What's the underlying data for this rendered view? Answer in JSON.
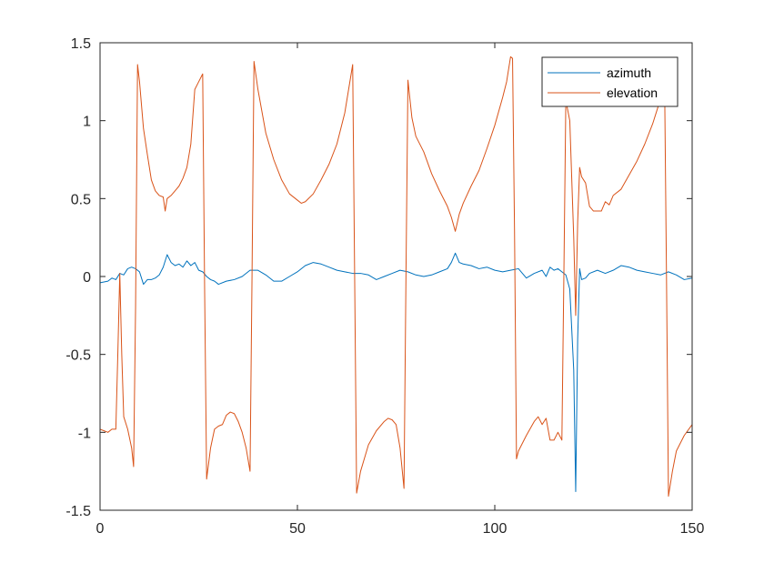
{
  "chart_data": {
    "type": "line",
    "title": "",
    "xlabel": "",
    "ylabel": "",
    "xlim": [
      0,
      150
    ],
    "ylim": [
      -1.5,
      1.5
    ],
    "xticks": [
      0,
      50,
      100,
      150
    ],
    "yticks": [
      -1.5,
      -1,
      -0.5,
      0,
      0.5,
      1,
      1.5
    ],
    "xtick_labels": [
      "0",
      "50",
      "100",
      "150"
    ],
    "ytick_labels": [
      "-1.5",
      "-1",
      "-0.5",
      "0",
      "0.5",
      "1",
      "1.5"
    ],
    "grid": false,
    "legend_position": "top-right",
    "series": [
      {
        "name": "azimuth",
        "color": "#0072BD",
        "points": [
          [
            0,
            -0.04
          ],
          [
            2,
            -0.03
          ],
          [
            3,
            -0.01
          ],
          [
            4,
            -0.02
          ],
          [
            5,
            0.02
          ],
          [
            6,
            0.01
          ],
          [
            7,
            0.05
          ],
          [
            8,
            0.06
          ],
          [
            9,
            0.05
          ],
          [
            10,
            0.03
          ],
          [
            11,
            -0.05
          ],
          [
            12,
            -0.02
          ],
          [
            13,
            -0.02
          ],
          [
            14,
            -0.01
          ],
          [
            15,
            0.01
          ],
          [
            16,
            0.06
          ],
          [
            17,
            0.14
          ],
          [
            18,
            0.09
          ],
          [
            19,
            0.07
          ],
          [
            20,
            0.08
          ],
          [
            21,
            0.06
          ],
          [
            22,
            0.1
          ],
          [
            23,
            0.07
          ],
          [
            24,
            0.09
          ],
          [
            25,
            0.04
          ],
          [
            26,
            0.03
          ],
          [
            27,
            0.0
          ],
          [
            28,
            -0.02
          ],
          [
            29,
            -0.03
          ],
          [
            30,
            -0.05
          ],
          [
            32,
            -0.03
          ],
          [
            34,
            -0.02
          ],
          [
            36,
            0.0
          ],
          [
            38,
            0.04
          ],
          [
            40,
            0.04
          ],
          [
            42,
            0.01
          ],
          [
            44,
            -0.03
          ],
          [
            46,
            -0.03
          ],
          [
            48,
            0.0
          ],
          [
            50,
            0.03
          ],
          [
            52,
            0.07
          ],
          [
            54,
            0.09
          ],
          [
            56,
            0.08
          ],
          [
            58,
            0.06
          ],
          [
            60,
            0.04
          ],
          [
            62,
            0.03
          ],
          [
            64,
            0.02
          ],
          [
            66,
            0.02
          ],
          [
            68,
            0.01
          ],
          [
            70,
            -0.02
          ],
          [
            72,
            0.0
          ],
          [
            74,
            0.02
          ],
          [
            76,
            0.04
          ],
          [
            78,
            0.03
          ],
          [
            80,
            0.01
          ],
          [
            82,
            0.0
          ],
          [
            84,
            0.01
          ],
          [
            86,
            0.03
          ],
          [
            88,
            0.05
          ],
          [
            89,
            0.09
          ],
          [
            90,
            0.15
          ],
          [
            91,
            0.09
          ],
          [
            92,
            0.08
          ],
          [
            94,
            0.07
          ],
          [
            96,
            0.05
          ],
          [
            98,
            0.06
          ],
          [
            100,
            0.04
          ],
          [
            102,
            0.03
          ],
          [
            104,
            0.04
          ],
          [
            106,
            0.05
          ],
          [
            107,
            0.02
          ],
          [
            108,
            -0.01
          ],
          [
            110,
            0.02
          ],
          [
            112,
            0.04
          ],
          [
            113,
            0.0
          ],
          [
            114,
            0.06
          ],
          [
            115,
            0.04
          ],
          [
            116,
            0.05
          ],
          [
            117,
            0.03
          ],
          [
            118,
            0.01
          ],
          [
            119,
            -0.08
          ],
          [
            120,
            -0.6
          ],
          [
            120.5,
            -1.38
          ],
          [
            121,
            -0.4
          ],
          [
            121.5,
            0.05
          ],
          [
            122,
            -0.02
          ],
          [
            123,
            -0.01
          ],
          [
            124,
            0.02
          ],
          [
            126,
            0.04
          ],
          [
            128,
            0.02
          ],
          [
            130,
            0.04
          ],
          [
            132,
            0.07
          ],
          [
            134,
            0.06
          ],
          [
            136,
            0.04
          ],
          [
            138,
            0.03
          ],
          [
            140,
            0.02
          ],
          [
            142,
            0.01
          ],
          [
            144,
            0.03
          ],
          [
            146,
            0.01
          ],
          [
            148,
            -0.02
          ],
          [
            150,
            -0.01
          ]
        ]
      },
      {
        "name": "elevation",
        "color": "#D95319",
        "points": [
          [
            0,
            -0.98
          ],
          [
            1,
            -0.99
          ],
          [
            2,
            -1.0
          ],
          [
            3,
            -0.98
          ],
          [
            4,
            -0.98
          ],
          [
            4.5,
            -0.5
          ],
          [
            5,
            0.02
          ],
          [
            5.5,
            -0.5
          ],
          [
            6,
            -0.9
          ],
          [
            7,
            -0.98
          ],
          [
            8,
            -1.1
          ],
          [
            8.5,
            -1.22
          ],
          [
            9,
            -0.2
          ],
          [
            9.5,
            1.36
          ],
          [
            10,
            1.25
          ],
          [
            11,
            0.95
          ],
          [
            12,
            0.78
          ],
          [
            13,
            0.62
          ],
          [
            14,
            0.55
          ],
          [
            15,
            0.52
          ],
          [
            16,
            0.51
          ],
          [
            16.5,
            0.42
          ],
          [
            17,
            0.5
          ],
          [
            18,
            0.52
          ],
          [
            19,
            0.55
          ],
          [
            20,
            0.58
          ],
          [
            21,
            0.63
          ],
          [
            22,
            0.7
          ],
          [
            23,
            0.85
          ],
          [
            24,
            1.2
          ],
          [
            25,
            1.25
          ],
          [
            26,
            1.3
          ],
          [
            26.5,
            -0.1
          ],
          [
            27,
            -1.3
          ],
          [
            28,
            -1.1
          ],
          [
            29,
            -0.98
          ],
          [
            30,
            -0.96
          ],
          [
            31,
            -0.95
          ],
          [
            32,
            -0.89
          ],
          [
            33,
            -0.87
          ],
          [
            34,
            -0.88
          ],
          [
            35,
            -0.93
          ],
          [
            36,
            -1.0
          ],
          [
            37,
            -1.1
          ],
          [
            38,
            -1.25
          ],
          [
            38.5,
            0.0
          ],
          [
            39,
            1.38
          ],
          [
            40,
            1.2
          ],
          [
            42,
            0.92
          ],
          [
            44,
            0.75
          ],
          [
            46,
            0.62
          ],
          [
            48,
            0.53
          ],
          [
            50,
            0.49
          ],
          [
            51,
            0.47
          ],
          [
            52,
            0.48
          ],
          [
            54,
            0.53
          ],
          [
            56,
            0.62
          ],
          [
            58,
            0.72
          ],
          [
            60,
            0.85
          ],
          [
            62,
            1.05
          ],
          [
            64,
            1.36
          ],
          [
            64.5,
            0.0
          ],
          [
            65,
            -1.39
          ],
          [
            66,
            -1.25
          ],
          [
            68,
            -1.08
          ],
          [
            70,
            -0.99
          ],
          [
            72,
            -0.93
          ],
          [
            73,
            -0.91
          ],
          [
            74,
            -0.92
          ],
          [
            75,
            -0.95
          ],
          [
            76,
            -1.1
          ],
          [
            77,
            -1.36
          ],
          [
            77.5,
            0.0
          ],
          [
            78,
            1.26
          ],
          [
            79,
            1.02
          ],
          [
            80,
            0.9
          ],
          [
            82,
            0.8
          ],
          [
            84,
            0.66
          ],
          [
            86,
            0.55
          ],
          [
            88,
            0.45
          ],
          [
            89,
            0.38
          ],
          [
            90,
            0.29
          ],
          [
            91,
            0.4
          ],
          [
            92,
            0.47
          ],
          [
            94,
            0.58
          ],
          [
            96,
            0.68
          ],
          [
            98,
            0.82
          ],
          [
            100,
            0.97
          ],
          [
            102,
            1.15
          ],
          [
            103,
            1.25
          ],
          [
            104,
            1.41
          ],
          [
            104.5,
            1.4
          ],
          [
            105,
            0.3
          ],
          [
            105.5,
            -1.17
          ],
          [
            106,
            -1.12
          ],
          [
            108,
            -1.02
          ],
          [
            110,
            -0.93
          ],
          [
            111,
            -0.9
          ],
          [
            112,
            -0.95
          ],
          [
            113,
            -0.91
          ],
          [
            114,
            -1.05
          ],
          [
            115,
            -1.05
          ],
          [
            116,
            -1.0
          ],
          [
            117,
            -1.05
          ],
          [
            117.5,
            0.0
          ],
          [
            118,
            1.13
          ],
          [
            119,
            1.0
          ],
          [
            120,
            0.25
          ],
          [
            120.5,
            -0.25
          ],
          [
            121,
            0.35
          ],
          [
            121.5,
            0.7
          ],
          [
            122,
            0.64
          ],
          [
            123,
            0.6
          ],
          [
            124,
            0.45
          ],
          [
            125,
            0.42
          ],
          [
            126,
            0.42
          ],
          [
            127,
            0.42
          ],
          [
            128,
            0.48
          ],
          [
            129,
            0.46
          ],
          [
            130,
            0.52
          ],
          [
            132,
            0.56
          ],
          [
            134,
            0.65
          ],
          [
            136,
            0.74
          ],
          [
            138,
            0.85
          ],
          [
            140,
            0.98
          ],
          [
            142,
            1.14
          ],
          [
            143,
            1.3
          ],
          [
            143.5,
            0.0
          ],
          [
            144,
            -1.41
          ],
          [
            145,
            -1.25
          ],
          [
            146,
            -1.12
          ],
          [
            148,
            -1.02
          ],
          [
            150,
            -0.95
          ]
        ]
      }
    ]
  }
}
